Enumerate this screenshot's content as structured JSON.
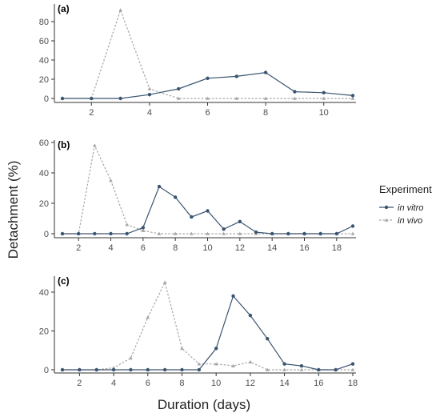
{
  "chart_data": {
    "type": "line",
    "xlabel": "Duration (days)",
    "ylabel": "Detachment (%)",
    "legend": {
      "title": "Experiment",
      "placement": "right",
      "entries": [
        {
          "label": "in vitro",
          "color": "#3b5570",
          "style": "solid",
          "marker": "circle"
        },
        {
          "label": "in vivo",
          "color": "#a6a6a6",
          "style": "dotted",
          "marker": "triangle"
        }
      ]
    },
    "panels": [
      {
        "label": "(a)",
        "xlim": [
          1,
          11
        ],
        "xticks": [
          2,
          4,
          6,
          8,
          10
        ],
        "ylim": [
          0,
          95
        ],
        "yticks": [
          0,
          20,
          40,
          60,
          80
        ],
        "series": [
          {
            "name": "in vitro",
            "x": [
              1,
              2,
              3,
              4,
              5,
              6,
              7,
              8,
              9,
              10,
              11
            ],
            "y": [
              0,
              0,
              0,
              4,
              10,
              21,
              23,
              27,
              7,
              6,
              3
            ]
          },
          {
            "name": "in vivo",
            "x": [
              1,
              2,
              3,
              4,
              5,
              6,
              7,
              8,
              9,
              10,
              11
            ],
            "y": [
              0,
              0,
              92,
              10,
              0,
              0,
              0,
              0,
              0,
              0,
              0
            ]
          }
        ]
      },
      {
        "label": "(b)",
        "xlim": [
          1,
          19
        ],
        "xticks": [
          2,
          4,
          6,
          8,
          10,
          12,
          14,
          16,
          18
        ],
        "ylim": [
          0,
          62
        ],
        "yticks": [
          0,
          20,
          40,
          60
        ],
        "series": [
          {
            "name": "in vitro",
            "x": [
              1,
              2,
              3,
              4,
              5,
              6,
              7,
              8,
              9,
              10,
              11,
              12,
              13,
              14,
              15,
              16,
              17,
              18,
              19
            ],
            "y": [
              0,
              0,
              0,
              0,
              0,
              4,
              31,
              24,
              11,
              15,
              3,
              8,
              1,
              0,
              0,
              0,
              0,
              0,
              5
            ]
          },
          {
            "name": "in vivo",
            "x": [
              1,
              2,
              3,
              4,
              5,
              6,
              7,
              8,
              9,
              10,
              11,
              12,
              13,
              14,
              15,
              16,
              17,
              18,
              19
            ],
            "y": [
              0,
              0,
              58,
              35,
              6,
              2,
              0,
              0,
              0,
              0,
              0,
              0,
              0,
              0,
              0,
              0,
              0,
              0,
              0
            ]
          }
        ]
      },
      {
        "label": "(c)",
        "xlim": [
          1,
          18
        ],
        "xticks": [
          2,
          4,
          6,
          8,
          10,
          12,
          14,
          16,
          18
        ],
        "ylim": [
          0,
          47
        ],
        "yticks": [
          0,
          20,
          40
        ],
        "series": [
          {
            "name": "in vitro",
            "x": [
              1,
              2,
              3,
              4,
              5,
              6,
              7,
              8,
              9,
              10,
              11,
              12,
              13,
              14,
              15,
              16,
              17,
              18
            ],
            "y": [
              0,
              0,
              0,
              0,
              0,
              0,
              0,
              0,
              0,
              11,
              38,
              28,
              16,
              3,
              2,
              0,
              0,
              3
            ]
          },
          {
            "name": "in vivo",
            "x": [
              1,
              2,
              3,
              4,
              5,
              6,
              7,
              8,
              9,
              10,
              11,
              12,
              13,
              14,
              15,
              16,
              17,
              18
            ],
            "y": [
              0,
              0,
              0,
              1,
              6,
              27,
              45,
              11,
              3,
              3,
              2,
              4,
              0,
              0,
              0,
              0,
              0,
              0
            ]
          }
        ]
      }
    ]
  }
}
